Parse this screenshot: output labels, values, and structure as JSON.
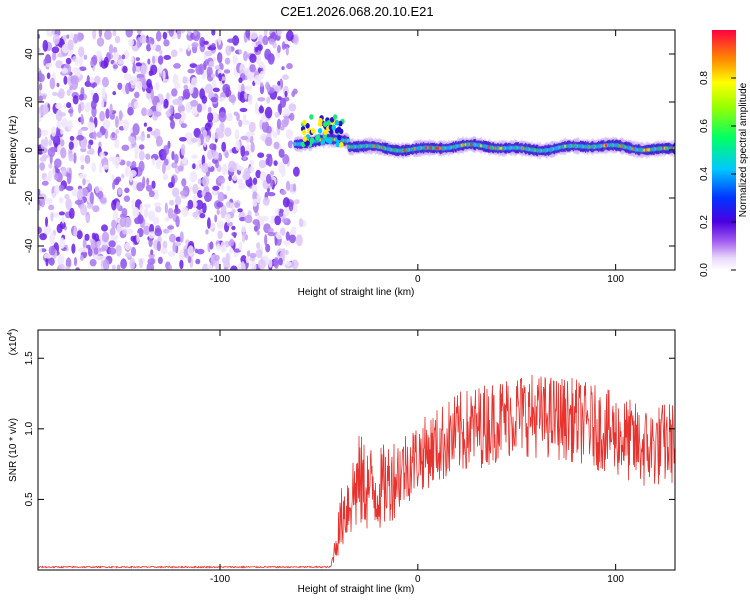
{
  "title": "C2E1.2026.068.20.10.E21",
  "chart_data": [
    {
      "type": "heatmap",
      "name": "spectrogram",
      "xlabel": "Height of straight line (km)",
      "ylabel": "Frequency (Hz)",
      "xlim": [
        -192,
        130
      ],
      "ylim": [
        -50,
        50
      ],
      "xticks": [
        -100,
        0,
        100
      ],
      "yticks": [
        -40,
        -20,
        0,
        20,
        40
      ],
      "xticklabels": [
        "-100",
        "0",
        "100"
      ],
      "yticklabels": [
        "-40",
        "-20",
        "0",
        "20",
        "40"
      ],
      "colorbar": {
        "label": "Normalized spectral amplitude",
        "range": [
          0,
          1
        ],
        "ticks": [
          0.0,
          0.2,
          0.4,
          0.6,
          0.8
        ],
        "ticklabels": [
          "0.0",
          "0.2",
          "0.4",
          "0.6",
          "0.8"
        ]
      },
      "noise_region_x": [
        -192,
        -57
      ],
      "signal_onset_x": -62,
      "signal_center_frequency": 1
    },
    {
      "type": "line",
      "name": "snr",
      "xlabel": "Height of straight line (km)",
      "ylabel": "SNR (10 * v/v)",
      "scale_label": "(x10",
      "scale_exponent": "4",
      "xlim": [
        -192,
        130
      ],
      "ylim": [
        0,
        1.7
      ],
      "xticks": [
        -100,
        0,
        100
      ],
      "yticks": [
        0.5,
        1.0,
        1.5
      ],
      "xticklabels": [
        "-100",
        "0",
        "100"
      ],
      "yticklabels": [
        "0.5",
        "1.0",
        "1.5"
      ],
      "color": "#e8322e",
      "x_breakpoints": [
        -192,
        -44,
        -38,
        -30,
        -20,
        -12,
        0,
        20,
        50,
        80,
        100,
        115,
        130
      ],
      "y_breakpoints": [
        0.02,
        0.02,
        0.35,
        0.55,
        0.5,
        0.6,
        0.75,
        0.9,
        1.05,
        1.0,
        0.9,
        0.8,
        0.85
      ],
      "y_noise_amplitude": [
        0.005,
        0.005,
        0.25,
        0.35,
        0.3,
        0.3,
        0.25,
        0.3,
        0.3,
        0.3,
        0.3,
        0.3,
        0.3
      ]
    }
  ]
}
